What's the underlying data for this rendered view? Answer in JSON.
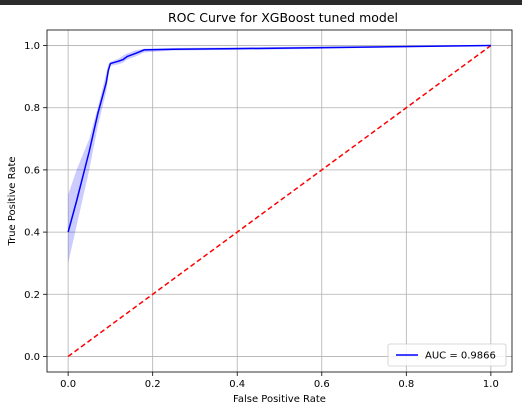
{
  "chart_data": {
    "type": "line",
    "title": "ROC Curve for XGBoost tuned model",
    "xlabel": "False Positive Rate",
    "ylabel": "True Positive Rate",
    "xlim": [
      -0.05,
      1.05
    ],
    "ylim": [
      -0.05,
      1.05
    ],
    "xticks": [
      "0.0",
      "0.2",
      "0.4",
      "0.6",
      "0.8",
      "1.0"
    ],
    "yticks": [
      "0.0",
      "0.2",
      "0.4",
      "0.6",
      "0.8",
      "1.0"
    ],
    "grid": true,
    "legend_position": "lower-right",
    "series": [
      {
        "name": "AUC = 0.9866",
        "color": "#0000ff",
        "x": [
          0.0,
          0.02,
          0.05,
          0.07,
          0.09,
          0.095,
          0.1,
          0.12,
          0.13,
          0.14,
          0.16,
          0.18,
          0.25,
          0.4,
          0.58,
          1.0
        ],
        "y": [
          0.4,
          0.5,
          0.66,
          0.78,
          0.88,
          0.92,
          0.942,
          0.95,
          0.955,
          0.965,
          0.975,
          0.986,
          0.988,
          0.99,
          0.993,
          1.0
        ],
        "band_upper": [
          0.52,
          0.6,
          0.7,
          0.8,
          0.91,
          0.94,
          0.948,
          0.958,
          0.968,
          0.975,
          0.985,
          0.99,
          0.992,
          0.994,
          0.997,
          1.0
        ],
        "band_lower": [
          0.3,
          0.42,
          0.6,
          0.74,
          0.85,
          0.9,
          0.935,
          0.94,
          0.945,
          0.955,
          0.965,
          0.978,
          0.984,
          0.986,
          0.989,
          1.0
        ]
      },
      {
        "name": "",
        "color": "#ff0000",
        "dashed": true,
        "x": [
          0.0,
          1.0
        ],
        "y": [
          0.0,
          1.0
        ]
      }
    ]
  }
}
